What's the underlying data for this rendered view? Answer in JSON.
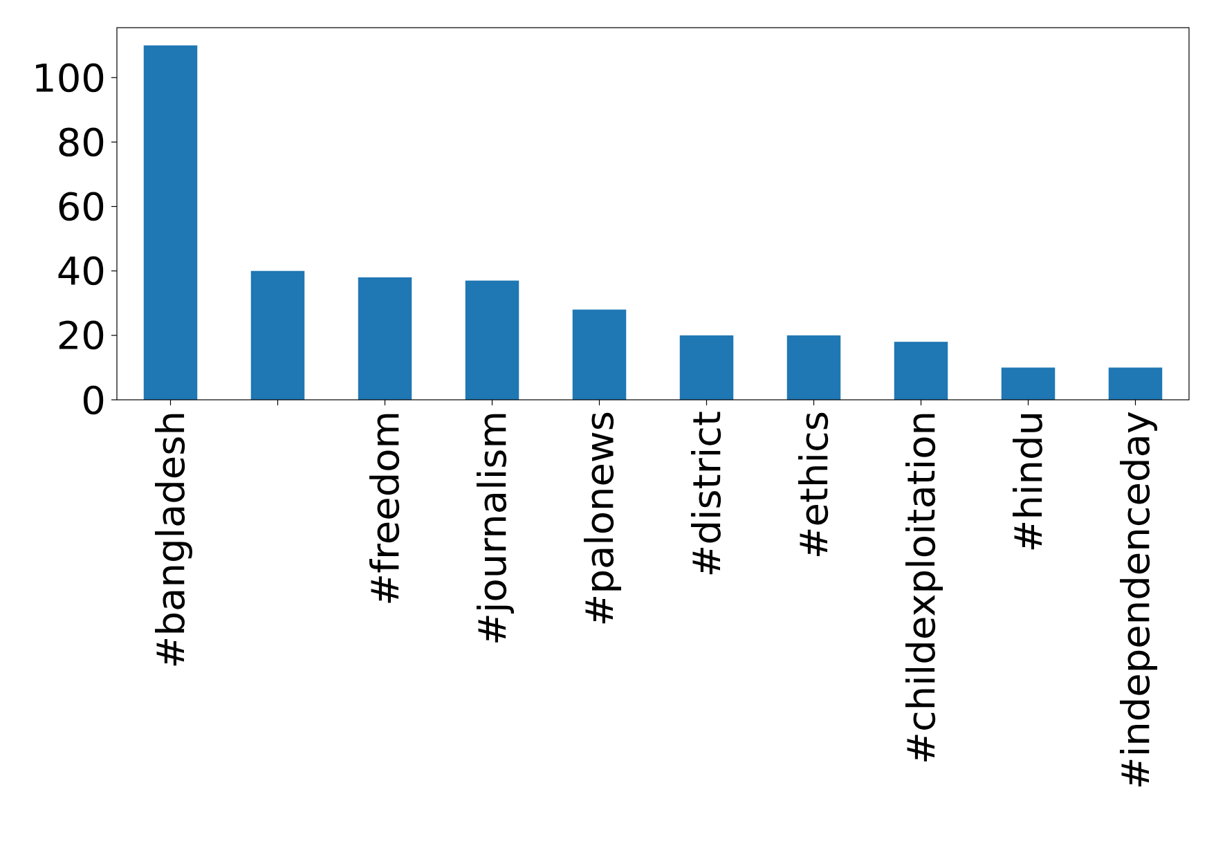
{
  "chart_data": {
    "type": "bar",
    "categories": [
      "#bangladesh",
      null,
      "#freedom",
      "#journalism",
      "#palonews",
      "#district",
      "#ethics",
      "#childexploitation",
      "#hindu",
      "#independenceday"
    ],
    "values": [
      110,
      40,
      38,
      37,
      28,
      20,
      20,
      18,
      10,
      10
    ],
    "color": "#1f77b4",
    "ylim": [
      0,
      115.5
    ],
    "yticks": [
      0,
      20,
      40,
      60,
      80,
      100
    ],
    "grid": false
  }
}
